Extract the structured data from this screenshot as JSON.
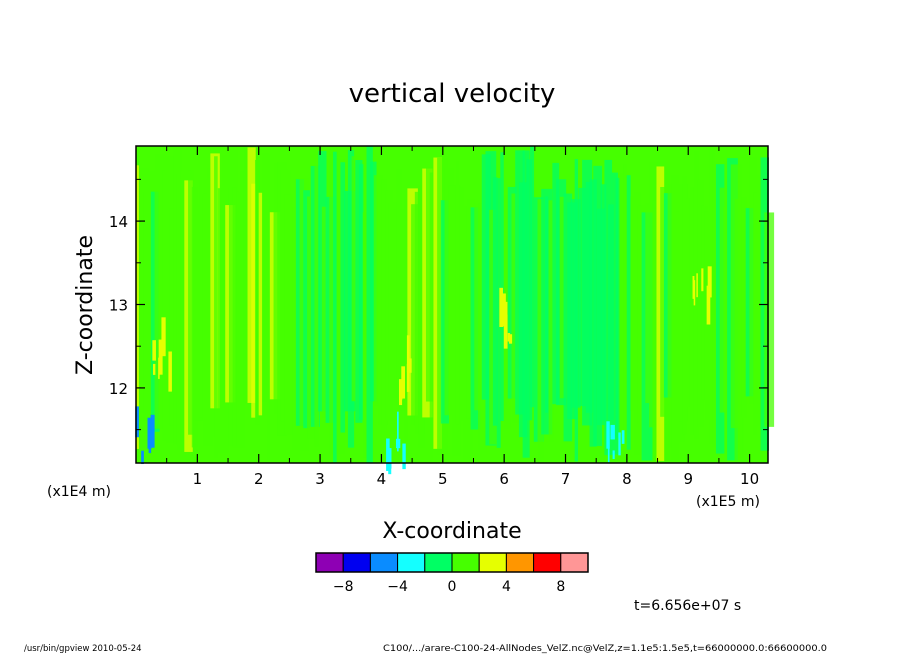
{
  "chart_data": {
    "type": "heatmap",
    "title": "vertical velocity",
    "xlabel": "X-coordinate",
    "ylabel": "Z-coordinate",
    "x_unit_label": "(x1E5 m)",
    "y_unit_label": "(x1E4 m)",
    "xlim": [
      0,
      1.03
    ],
    "ylim": [
      1.11,
      1.49
    ],
    "x_ticks": [
      {
        "value": 0.1,
        "label": "1"
      },
      {
        "value": 0.2,
        "label": "2"
      },
      {
        "value": 0.3,
        "label": "3"
      },
      {
        "value": 0.4,
        "label": "4"
      },
      {
        "value": 0.5,
        "label": "5"
      },
      {
        "value": 0.6,
        "label": "6"
      },
      {
        "value": 0.7,
        "label": "7"
      },
      {
        "value": 0.8,
        "label": "8"
      },
      {
        "value": 0.9,
        "label": "9"
      },
      {
        "value": 1.0,
        "label": "10"
      }
    ],
    "y_ticks": [
      {
        "value": 1.2,
        "label": "12"
      },
      {
        "value": 1.3,
        "label": "13"
      },
      {
        "value": 1.4,
        "label": "14"
      }
    ],
    "colorbar": {
      "colors": [
        "#8e00b4",
        "#0000f0",
        "#0a8cff",
        "#14ffff",
        "#00ff64",
        "#46ff00",
        "#e6ff00",
        "#ff9600",
        "#ff0000",
        "#ff9696"
      ],
      "boundaries": [
        -10,
        -8,
        -6,
        -4,
        -2,
        0,
        2,
        4,
        6,
        8,
        10
      ],
      "tick_labels": [
        {
          "value": -8,
          "label": "−8"
        },
        {
          "value": -4,
          "label": "−4"
        },
        {
          "value": 0,
          "label": "0"
        },
        {
          "value": 4,
          "label": "4"
        },
        {
          "value": 8,
          "label": "8"
        }
      ]
    },
    "dominant_levels": [
      {
        "x": 0.05,
        "value": 1
      },
      {
        "x": 0.2,
        "value": 1.5
      },
      {
        "x": 0.33,
        "value": -0.5
      },
      {
        "x": 0.45,
        "value": 1.5
      },
      {
        "x": 0.55,
        "value": 0.5
      },
      {
        "x": 0.65,
        "value": -0.5
      },
      {
        "x": 0.75,
        "value": -1
      },
      {
        "x": 0.85,
        "value": 1
      },
      {
        "x": 0.95,
        "value": 0.5
      }
    ],
    "hotspots": [
      {
        "x": 0.92,
        "z": 1.3,
        "value": 3
      },
      {
        "x": 0.44,
        "z": 1.2,
        "value": 3
      },
      {
        "x": 0.6,
        "z": 1.25,
        "value": 3
      },
      {
        "x": 0.04,
        "z": 1.22,
        "value": 3
      },
      {
        "x": 0.78,
        "z": 1.13,
        "value": -3
      },
      {
        "x": 0.42,
        "z": 1.12,
        "value": -3
      },
      {
        "x": 0.01,
        "z": 1.12,
        "value": -5
      }
    ],
    "time_label": "t=6.656e+07 s"
  },
  "footer": {
    "program": "/usr/bin/gpview  2010-05-24",
    "source": "C100/.../arare-C100-24-AllNodes_VelZ.nc@VelZ,z=1.1e5:1.5e5,t=66000000.0:66600000.0"
  }
}
